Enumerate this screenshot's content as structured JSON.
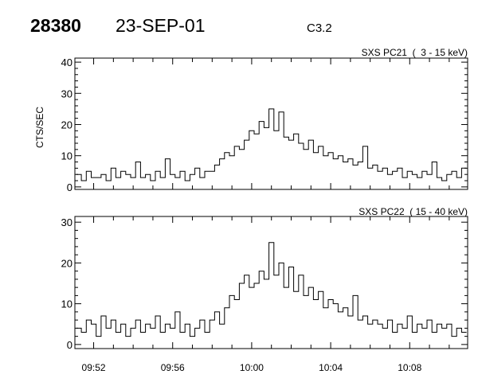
{
  "header": {
    "id": "28380",
    "date": "23-SEP-01",
    "class": "C3.2"
  },
  "chart_data": [
    {
      "type": "line",
      "title": "SXS PC21  (  3 - 15 keV)",
      "ylabel": "CTS/SEC",
      "xlabel": "",
      "xlim": [
        "09:51:03",
        "10:10:56"
      ],
      "ylim": [
        -0.8,
        41.3
      ],
      "yticks": [
        0,
        10,
        20,
        30,
        40
      ],
      "xticks": [
        "09:52",
        "09:56",
        "10:00",
        "10:04",
        "10:08"
      ],
      "grid": false,
      "color": "#000000",
      "values": [
        4,
        2,
        5,
        3,
        3,
        4,
        2,
        6,
        3,
        5,
        4,
        3,
        8,
        3,
        4,
        2,
        5,
        3,
        9,
        4,
        3,
        5,
        2,
        4,
        6,
        3,
        5,
        5,
        7,
        9,
        11,
        10,
        13,
        12,
        15,
        18,
        17,
        21,
        19,
        25,
        18,
        24,
        16,
        15,
        17,
        14,
        12,
        15,
        11,
        13,
        10,
        11,
        9,
        10,
        8,
        9,
        7,
        8,
        13,
        6,
        7,
        5,
        6,
        4,
        5,
        6,
        3,
        5,
        4,
        3,
        5,
        4,
        8,
        3,
        2,
        4,
        5,
        3,
        6
      ]
    },
    {
      "type": "line",
      "title": "SXS PC22  ( 15 - 40 keV)",
      "ylabel": "",
      "xlabel": "",
      "xlim": [
        "09:51:03",
        "10:10:56"
      ],
      "ylim": [
        -1,
        31.4
      ],
      "yticks": [
        0,
        10,
        20,
        30
      ],
      "xticks": [
        "09:52",
        "09:56",
        "10:00",
        "10:04",
        "10:08"
      ],
      "grid": false,
      "color": "#000000",
      "values": [
        4,
        3,
        6,
        5,
        2,
        7,
        4,
        6,
        3,
        5,
        2,
        4,
        6,
        3,
        5,
        4,
        7,
        3,
        5,
        4,
        8,
        3,
        5,
        2,
        4,
        6,
        3,
        6,
        8,
        5,
        9,
        12,
        11,
        15,
        17,
        14,
        15,
        18,
        16,
        25,
        17,
        20,
        14,
        19,
        13,
        17,
        12,
        14,
        11,
        13,
        9,
        11,
        10,
        8,
        9,
        7,
        12,
        6,
        7,
        5,
        6,
        5,
        4,
        6,
        3,
        5,
        4,
        7,
        3,
        5,
        4,
        6,
        3,
        5,
        4,
        5,
        2,
        4,
        3
      ]
    }
  ],
  "x": [
    "09:51:15",
    "09:51:30",
    "09:51:45",
    "09:52:00",
    "09:52:15",
    "09:52:30",
    "09:52:45",
    "09:53:00",
    "09:53:15",
    "09:53:30",
    "09:53:45",
    "09:54:00",
    "09:54:15",
    "09:54:30",
    "09:54:45",
    "09:55:00",
    "09:55:15",
    "09:55:30",
    "09:55:45",
    "09:56:00",
    "09:56:15",
    "09:56:30",
    "09:56:45",
    "09:57:00",
    "09:57:15",
    "09:57:30",
    "09:57:45",
    "09:58:00",
    "09:58:15",
    "09:58:30",
    "09:58:45",
    "09:59:00",
    "09:59:15",
    "09:59:30",
    "09:59:45",
    "10:00:00",
    "10:00:15",
    "10:00:30",
    "10:00:45",
    "10:01:00",
    "10:01:15",
    "10:01:30",
    "10:01:45",
    "10:02:00",
    "10:02:15",
    "10:02:30",
    "10:02:45",
    "10:03:00",
    "10:03:15",
    "10:03:30",
    "10:03:45",
    "10:04:00",
    "10:04:15",
    "10:04:30",
    "10:04:45",
    "10:05:00",
    "10:05:15",
    "10:05:30",
    "10:05:45",
    "10:06:00",
    "10:06:15",
    "10:06:30",
    "10:06:45",
    "10:07:00",
    "10:07:15",
    "10:07:30",
    "10:07:45",
    "10:08:00",
    "10:08:15",
    "10:08:30",
    "10:08:45",
    "10:09:00",
    "10:09:15",
    "10:09:30",
    "10:09:45",
    "10:10:00",
    "10:10:15",
    "10:10:30",
    "10:10:45"
  ]
}
